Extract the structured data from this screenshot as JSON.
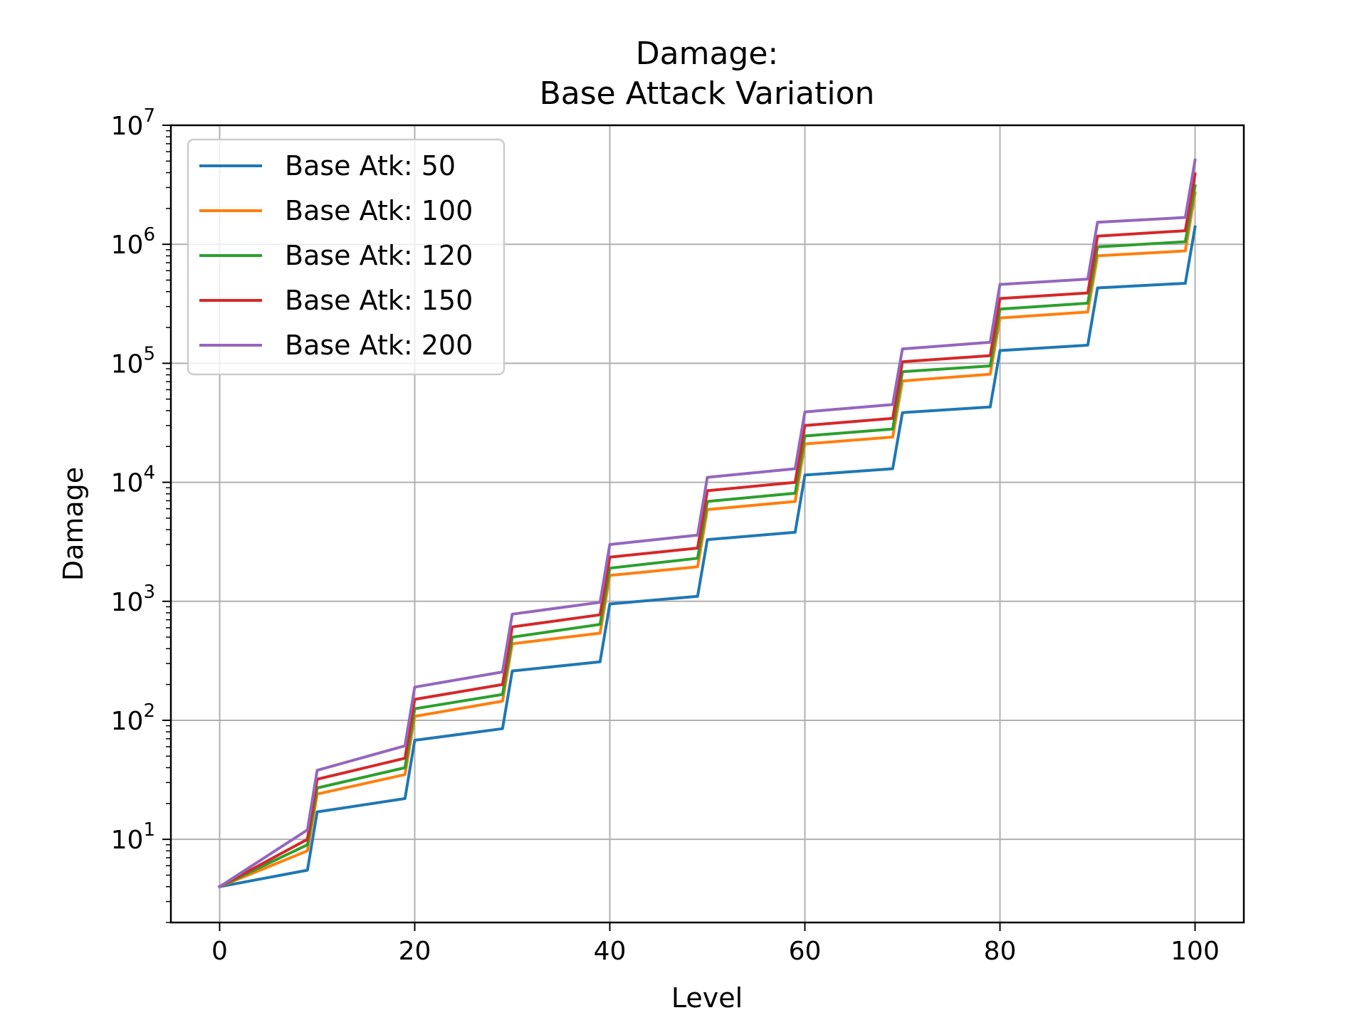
{
  "chart_data": {
    "type": "line",
    "title_line1": "Damage:",
    "title_line2": "Base Attack Variation",
    "xlabel": "Level",
    "ylabel": "Damage",
    "xscale": "linear",
    "yscale": "log",
    "xlim": [
      -5,
      105
    ],
    "ylim": [
      2.0,
      10000000
    ],
    "grid": true,
    "legend_position": "upper-left",
    "x_ticks": [
      "0",
      "20",
      "40",
      "60",
      "80",
      "100"
    ],
    "y_ticks": [
      {
        "base": "10",
        "exp": "1"
      },
      {
        "base": "10",
        "exp": "2"
      },
      {
        "base": "10",
        "exp": "3"
      },
      {
        "base": "10",
        "exp": "4"
      },
      {
        "base": "10",
        "exp": "5"
      },
      {
        "base": "10",
        "exp": "6"
      },
      {
        "base": "10",
        "exp": "7"
      }
    ],
    "x": [
      0,
      9,
      10,
      19,
      20,
      29,
      30,
      39,
      40,
      49,
      50,
      59,
      60,
      69,
      70,
      79,
      80,
      89,
      90,
      99,
      100
    ],
    "series": [
      {
        "name": "Base Atk: 50",
        "color": "#1f77b4",
        "values": [
          4,
          5.5,
          17,
          22,
          68,
          85,
          260,
          310,
          950,
          1100,
          3300,
          3800,
          11500,
          13000,
          38500,
          43000,
          128000,
          142000,
          430000,
          470000,
          1400000
        ]
      },
      {
        "name": "Base Atk: 100",
        "color": "#ff7f0e",
        "values": [
          4,
          8,
          24,
          35,
          108,
          145,
          440,
          540,
          1650,
          1950,
          5900,
          6900,
          21000,
          24000,
          71000,
          81000,
          240000,
          270000,
          800000,
          880000,
          2700000
        ]
      },
      {
        "name": "Base Atk: 120",
        "color": "#2ca02c",
        "values": [
          4,
          9,
          27,
          40,
          125,
          165,
          500,
          640,
          1900,
          2300,
          6900,
          8100,
          24500,
          28000,
          85000,
          95000,
          285000,
          320000,
          950000,
          1050000,
          3100000
        ]
      },
      {
        "name": "Base Atk: 150",
        "color": "#d62728",
        "values": [
          4,
          10,
          32,
          48,
          150,
          200,
          610,
          770,
          2350,
          2800,
          8500,
          10000,
          30000,
          34500,
          103000,
          116000,
          350000,
          390000,
          1170000,
          1300000,
          3900000
        ]
      },
      {
        "name": "Base Atk: 200",
        "color": "#9467bd",
        "values": [
          4,
          12,
          38,
          61,
          190,
          255,
          780,
          980,
          3000,
          3600,
          11000,
          13000,
          39000,
          45000,
          132000,
          150000,
          460000,
          510000,
          1530000,
          1680000,
          5100000
        ]
      }
    ]
  }
}
